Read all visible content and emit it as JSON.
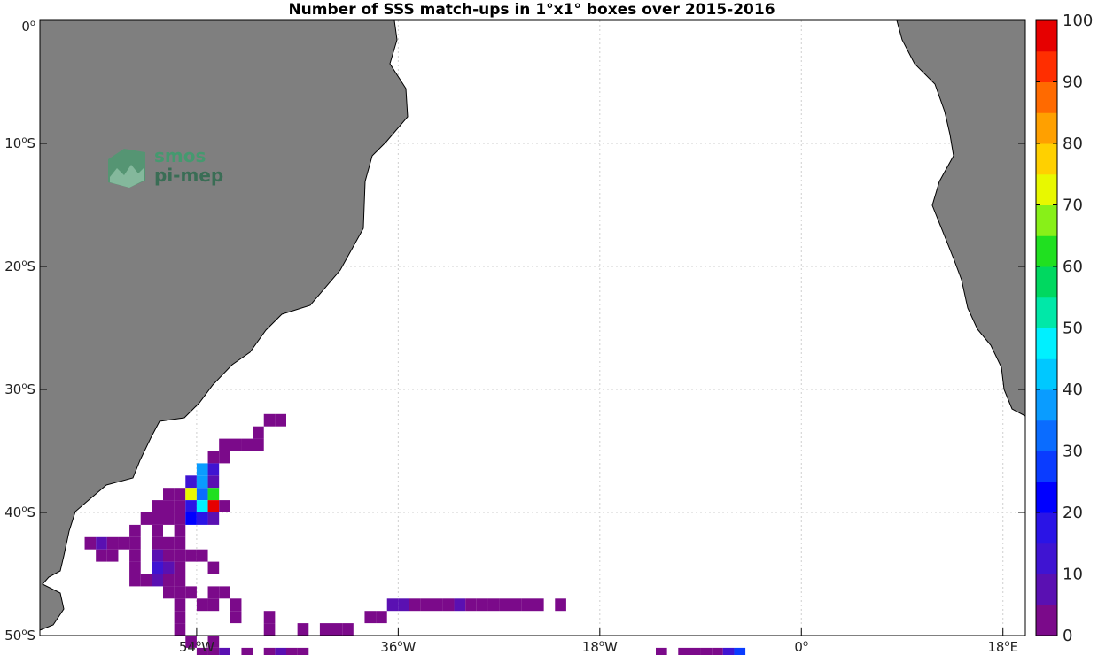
{
  "chart_data": {
    "type": "heatmap",
    "title": "Number of SSS match-ups in 1°x1° boxes over 2015-2016",
    "xlim": [
      -68,
      20
    ],
    "ylim": [
      -50,
      0
    ],
    "x_ticks": [
      {
        "value": -54,
        "label": "54",
        "hemi": "W"
      },
      {
        "value": -36,
        "label": "36",
        "hemi": "W"
      },
      {
        "value": -18,
        "label": "18",
        "hemi": "W"
      },
      {
        "value": 0,
        "label": "0",
        "hemi": ""
      },
      {
        "value": 18,
        "label": "18",
        "hemi": "E"
      }
    ],
    "y_ticks": [
      {
        "value": 0,
        "label": "0",
        "hemi": ""
      },
      {
        "value": -10,
        "label": "10",
        "hemi": "S"
      },
      {
        "value": -20,
        "label": "20",
        "hemi": "S"
      },
      {
        "value": -30,
        "label": "30",
        "hemi": "S"
      },
      {
        "value": -40,
        "label": "40",
        "hemi": "S"
      },
      {
        "value": -50,
        "label": "50",
        "hemi": "S"
      }
    ],
    "grid": true,
    "colorbar": {
      "min": 0,
      "max": 100,
      "levels": 20,
      "tick_labels": [
        "0",
        "10",
        "20",
        "30",
        "40",
        "50",
        "60",
        "70",
        "80",
        "90",
        "100"
      ],
      "colors": [
        "#7b0a8a",
        "#5a10b2",
        "#3f14d2",
        "#2a14e6",
        "#0000ff",
        "#0a3cff",
        "#0a6cff",
        "#0a9cff",
        "#00c8ff",
        "#00f0ff",
        "#00e8a8",
        "#00d860",
        "#20e020",
        "#88f018",
        "#e8f800",
        "#ffd000",
        "#ffa000",
        "#ff6a00",
        "#ff2e00",
        "#e60000"
      ]
    },
    "cells": [
      {
        "lon": -48,
        "lat": -32,
        "v": 1
      },
      {
        "lon": -47,
        "lat": -32,
        "v": 1
      },
      {
        "lon": -49,
        "lat": -33,
        "v": 2
      },
      {
        "lon": -52,
        "lat": -34,
        "v": 1
      },
      {
        "lon": -51,
        "lat": -34,
        "v": 2
      },
      {
        "lon": -50,
        "lat": -34,
        "v": 1
      },
      {
        "lon": -49,
        "lat": -34,
        "v": 1
      },
      {
        "lon": -53,
        "lat": -35,
        "v": 2
      },
      {
        "lon": -52,
        "lat": -35,
        "v": 1
      },
      {
        "lon": -54,
        "lat": -36,
        "v": 38
      },
      {
        "lon": -53,
        "lat": -36,
        "v": 14
      },
      {
        "lon": -55,
        "lat": -37,
        "v": 12
      },
      {
        "lon": -54,
        "lat": -37,
        "v": 36
      },
      {
        "lon": -53,
        "lat": -37,
        "v": 5
      },
      {
        "lon": -57,
        "lat": -38,
        "v": 2
      },
      {
        "lon": -56,
        "lat": -38,
        "v": 1
      },
      {
        "lon": -55,
        "lat": -38,
        "v": 72
      },
      {
        "lon": -54,
        "lat": -38,
        "v": 34
      },
      {
        "lon": -53,
        "lat": -38,
        "v": 64
      },
      {
        "lon": -58,
        "lat": -39,
        "v": 1
      },
      {
        "lon": -57,
        "lat": -39,
        "v": 2
      },
      {
        "lon": -56,
        "lat": -39,
        "v": 1
      },
      {
        "lon": -55,
        "lat": -39,
        "v": 18
      },
      {
        "lon": -54,
        "lat": -39,
        "v": 46
      },
      {
        "lon": -53,
        "lat": -39,
        "v": 100
      },
      {
        "lon": -52,
        "lat": -39,
        "v": 2
      },
      {
        "lon": -59,
        "lat": -40,
        "v": 1
      },
      {
        "lon": -58,
        "lat": -40,
        "v": 2
      },
      {
        "lon": -57,
        "lat": -40,
        "v": 1
      },
      {
        "lon": -56,
        "lat": -40,
        "v": 1
      },
      {
        "lon": -55,
        "lat": -40,
        "v": 20
      },
      {
        "lon": -54,
        "lat": -40,
        "v": 18
      },
      {
        "lon": -53,
        "lat": -40,
        "v": 5
      },
      {
        "lon": -60,
        "lat": -41,
        "v": 1
      },
      {
        "lon": -58,
        "lat": -41,
        "v": 1
      },
      {
        "lon": -56,
        "lat": -41,
        "v": 2
      },
      {
        "lon": -64,
        "lat": -42,
        "v": 2
      },
      {
        "lon": -63,
        "lat": -42,
        "v": 8
      },
      {
        "lon": -62,
        "lat": -42,
        "v": 2
      },
      {
        "lon": -61,
        "lat": -42,
        "v": 1
      },
      {
        "lon": -60,
        "lat": -42,
        "v": 2
      },
      {
        "lon": -58,
        "lat": -42,
        "v": 1
      },
      {
        "lon": -57,
        "lat": -42,
        "v": 2
      },
      {
        "lon": -56,
        "lat": -42,
        "v": 1
      },
      {
        "lon": -63,
        "lat": -43,
        "v": 1
      },
      {
        "lon": -62,
        "lat": -43,
        "v": 2
      },
      {
        "lon": -60,
        "lat": -43,
        "v": 1
      },
      {
        "lon": -58,
        "lat": -43,
        "v": 8
      },
      {
        "lon": -57,
        "lat": -43,
        "v": 1
      },
      {
        "lon": -56,
        "lat": -43,
        "v": 2
      },
      {
        "lon": -55,
        "lat": -43,
        "v": 1
      },
      {
        "lon": -54,
        "lat": -43,
        "v": 2
      },
      {
        "lon": -60,
        "lat": -44,
        "v": 2
      },
      {
        "lon": -58,
        "lat": -44,
        "v": 12
      },
      {
        "lon": -57,
        "lat": -44,
        "v": 6
      },
      {
        "lon": -56,
        "lat": -44,
        "v": 1
      },
      {
        "lon": -53,
        "lat": -44,
        "v": 1
      },
      {
        "lon": -60,
        "lat": -45,
        "v": 1
      },
      {
        "lon": -59,
        "lat": -45,
        "v": 2
      },
      {
        "lon": -58,
        "lat": -45,
        "v": 8
      },
      {
        "lon": -57,
        "lat": -45,
        "v": 1
      },
      {
        "lon": -56,
        "lat": -45,
        "v": 2
      },
      {
        "lon": -57,
        "lat": -46,
        "v": 1
      },
      {
        "lon": -56,
        "lat": -46,
        "v": 2
      },
      {
        "lon": -55,
        "lat": -46,
        "v": 1
      },
      {
        "lon": -53,
        "lat": -46,
        "v": 1
      },
      {
        "lon": -52,
        "lat": -46,
        "v": 2
      },
      {
        "lon": -56,
        "lat": -47,
        "v": 1
      },
      {
        "lon": -54,
        "lat": -47,
        "v": 2
      },
      {
        "lon": -53,
        "lat": -47,
        "v": 1
      },
      {
        "lon": -51,
        "lat": -47,
        "v": 2
      },
      {
        "lon": -37,
        "lat": -47,
        "v": 6
      },
      {
        "lon": -36,
        "lat": -47,
        "v": 6
      },
      {
        "lon": -35,
        "lat": -47,
        "v": 2
      },
      {
        "lon": -34,
        "lat": -47,
        "v": 4
      },
      {
        "lon": -33,
        "lat": -47,
        "v": 4
      },
      {
        "lon": -32,
        "lat": -47,
        "v": 2
      },
      {
        "lon": -31,
        "lat": -47,
        "v": 5
      },
      {
        "lon": -30,
        "lat": -47,
        "v": 2
      },
      {
        "lon": -29,
        "lat": -47,
        "v": 1
      },
      {
        "lon": -28,
        "lat": -47,
        "v": 1
      },
      {
        "lon": -27,
        "lat": -47,
        "v": 2
      },
      {
        "lon": -26,
        "lat": -47,
        "v": 1
      },
      {
        "lon": -25,
        "lat": -47,
        "v": 2
      },
      {
        "lon": -24,
        "lat": -47,
        "v": 1
      },
      {
        "lon": -22,
        "lat": -47,
        "v": 1
      },
      {
        "lon": -56,
        "lat": -48,
        "v": 2
      },
      {
        "lon": -51,
        "lat": -48,
        "v": 1
      },
      {
        "lon": -48,
        "lat": -48,
        "v": 2
      },
      {
        "lon": -39,
        "lat": -48,
        "v": 1
      },
      {
        "lon": -38,
        "lat": -48,
        "v": 2
      },
      {
        "lon": -56,
        "lat": -49,
        "v": 1
      },
      {
        "lon": -48,
        "lat": -49,
        "v": 1
      },
      {
        "lon": -45,
        "lat": -49,
        "v": 1
      },
      {
        "lon": -43,
        "lat": -49,
        "v": 2
      },
      {
        "lon": -42,
        "lat": -49,
        "v": 1
      },
      {
        "lon": -41,
        "lat": -49,
        "v": 1
      },
      {
        "lon": -55,
        "lat": -50,
        "v": 1
      },
      {
        "lon": -53,
        "lat": -50,
        "v": 2
      },
      {
        "lon": -54,
        "lat": -51,
        "v": 1
      },
      {
        "lon": -53,
        "lat": -51,
        "v": 2
      },
      {
        "lon": -52,
        "lat": -51,
        "v": 6
      },
      {
        "lon": -50,
        "lat": -51,
        "v": 1
      },
      {
        "lon": -48,
        "lat": -51,
        "v": 2
      },
      {
        "lon": -47,
        "lat": -51,
        "v": 6
      },
      {
        "lon": -46,
        "lat": -51,
        "v": 1
      },
      {
        "lon": -45,
        "lat": -51,
        "v": 2
      },
      {
        "lon": -13,
        "lat": -51,
        "v": 1
      },
      {
        "lon": -11,
        "lat": -51,
        "v": 1
      },
      {
        "lon": -10,
        "lat": -51,
        "v": 2
      },
      {
        "lon": -9,
        "lat": -51,
        "v": 1
      },
      {
        "lon": -8,
        "lat": -51,
        "v": 2
      },
      {
        "lon": -7,
        "lat": -51,
        "v": 10
      },
      {
        "lon": -6,
        "lat": -51,
        "v": 26
      }
    ]
  },
  "map": {
    "land_color": "#7f7f7f",
    "coast_color": "#000000"
  },
  "watermark": {
    "line1": "smos",
    "line2": "pi-mep",
    "color1": "#3b9e6d",
    "color2": "#2e6b4e"
  }
}
